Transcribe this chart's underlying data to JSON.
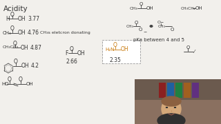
{
  "bg_color": "#f2f0ec",
  "tc": "#333333",
  "oc": "#c8780a",
  "title": "Acidity",
  "pka_1": "3.77",
  "pka_2": "4.76",
  "pka_3": "4.87",
  "pka_4": "4.2",
  "note": "CH₃s eletcron donating",
  "pka_f": "2.66",
  "pka_asp": "2.35",
  "pka_label": "pKa between 4 and 5",
  "webcam_color": "#b8a090",
  "webcam_face": "#d4b08a"
}
